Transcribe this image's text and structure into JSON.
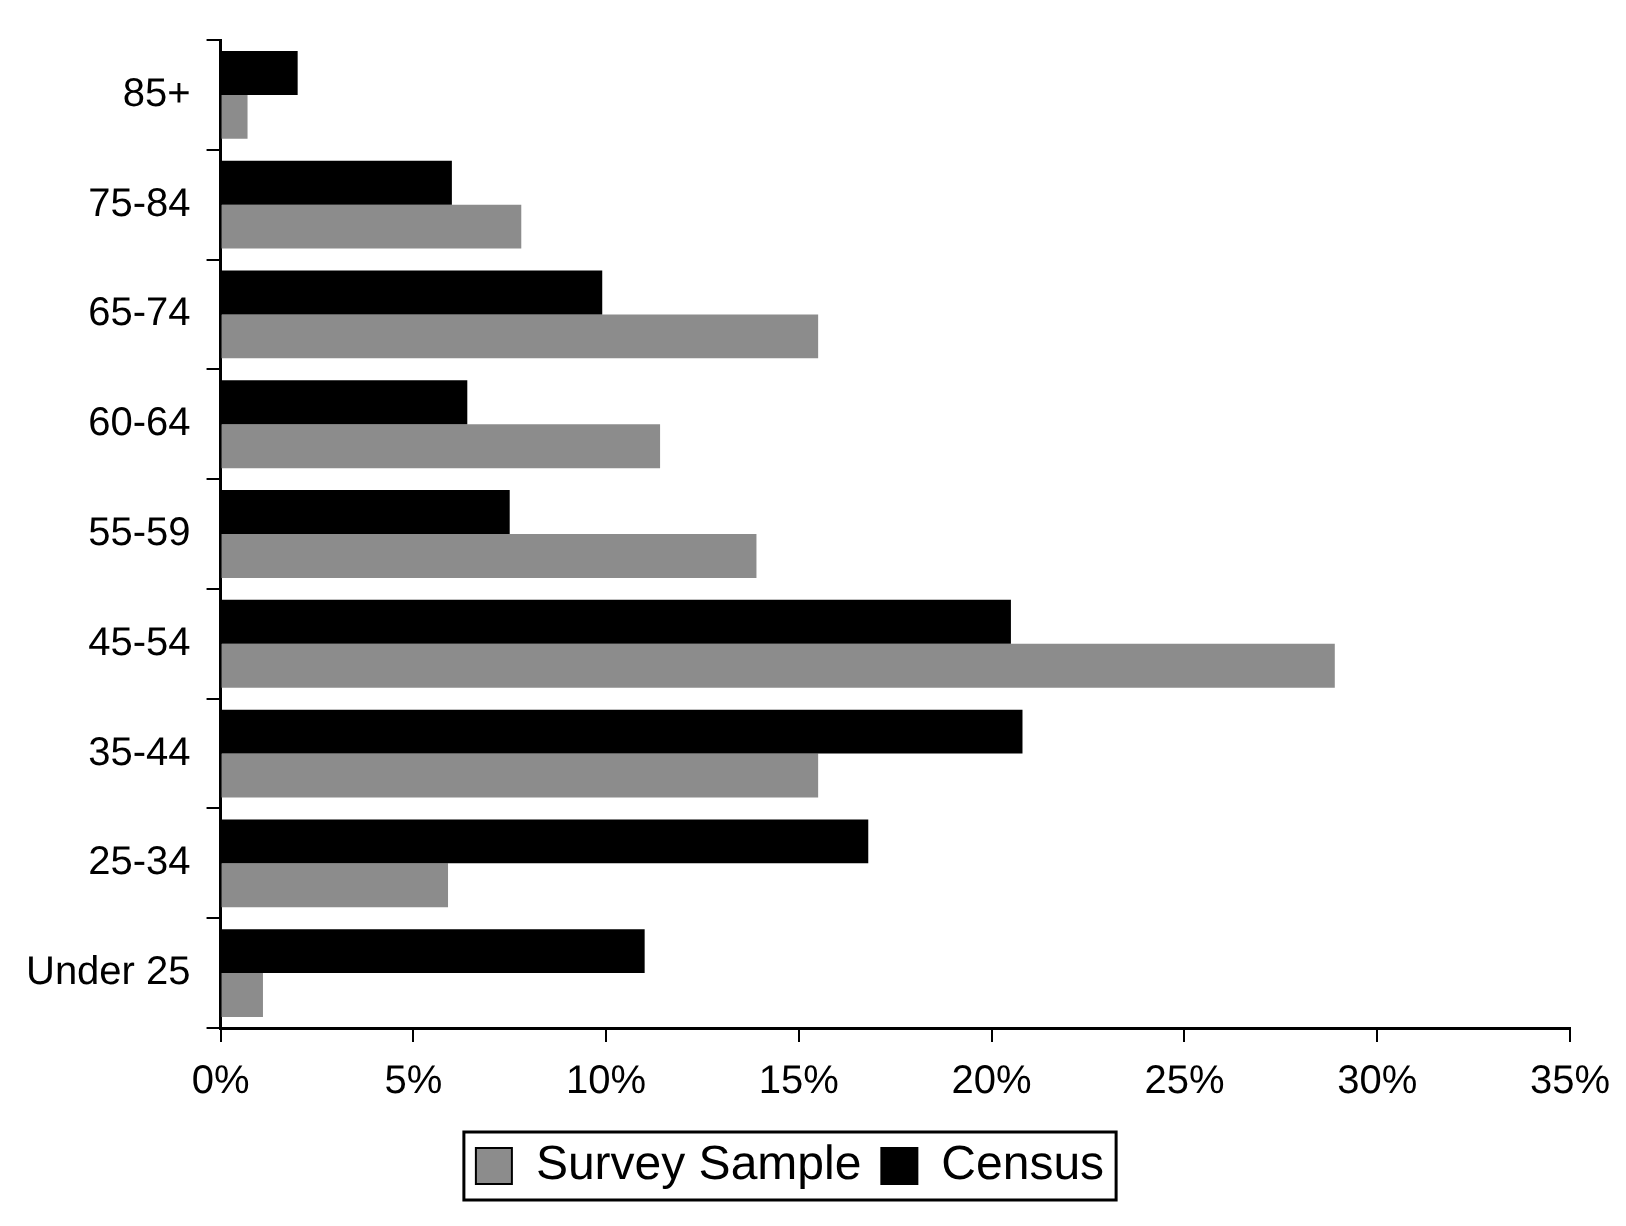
{
  "chart_data": {
    "type": "bar",
    "orientation": "horizontal",
    "categories": [
      "85+",
      "75-84",
      "65-74",
      "60-64",
      "55-59",
      "45-54",
      "35-44",
      "25-34",
      "Under 25"
    ],
    "series": [
      {
        "name": "Survey Sample",
        "color": "#8c8c8c",
        "values": [
          0.7,
          7.8,
          15.5,
          11.4,
          13.9,
          28.9,
          15.5,
          5.9,
          1.1
        ]
      },
      {
        "name": "Census",
        "color": "#000000",
        "values": [
          2.0,
          6.0,
          9.9,
          6.4,
          7.5,
          20.5,
          20.8,
          16.8,
          11.0
        ]
      }
    ],
    "xlim": [
      0,
      35
    ],
    "xticks": [
      {
        "value": 0,
        "label": "0%"
      },
      {
        "value": 5,
        "label": "5%"
      },
      {
        "value": 10,
        "label": "10%"
      },
      {
        "value": 15,
        "label": "15%"
      },
      {
        "value": 20,
        "label": "20%"
      },
      {
        "value": 25,
        "label": "25%"
      },
      {
        "value": 30,
        "label": "30%"
      },
      {
        "value": 35,
        "label": "35%"
      }
    ],
    "grid": false,
    "legend": "bottom"
  }
}
